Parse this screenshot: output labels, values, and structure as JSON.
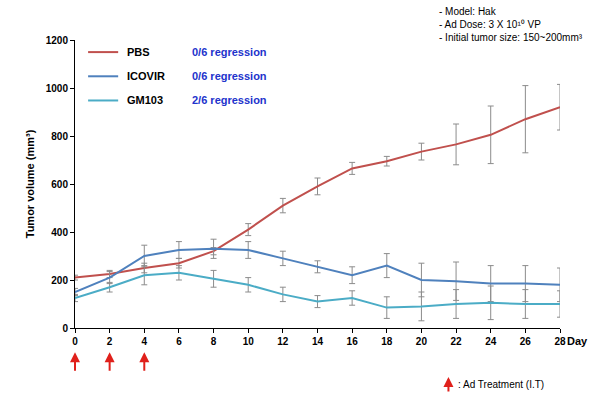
{
  "chart_data": {
    "type": "line",
    "x": [
      0,
      2,
      4,
      6,
      8,
      10,
      12,
      14,
      16,
      18,
      20,
      22,
      24,
      26,
      28
    ],
    "xlim": [
      0,
      28
    ],
    "xticks": [
      0,
      2,
      4,
      6,
      8,
      10,
      12,
      14,
      16,
      18,
      20,
      22,
      24,
      26,
      28
    ],
    "ylim": [
      0,
      1200
    ],
    "yticks": [
      0,
      200,
      400,
      600,
      800,
      1000,
      1200
    ],
    "x_label": "Day",
    "y_label": "Tumor volume (mm³)",
    "grid": false,
    "legend": "upper left",
    "marker": "none",
    "series": [
      {
        "name": "PBS",
        "color": "#c0504d",
        "regression": "0/6 regression",
        "values": [
          210,
          225,
          250,
          270,
          320,
          410,
          510,
          590,
          665,
          695,
          735,
          765,
          805,
          870,
          920
        ],
        "error": [
          10,
          15,
          20,
          20,
          15,
          25,
          30,
          35,
          25,
          20,
          35,
          85,
          120,
          140,
          95
        ]
      },
      {
        "name": "ICOVIR",
        "color": "#4f81bd",
        "regression": "0/6 regression",
        "values": [
          150,
          210,
          300,
          325,
          330,
          325,
          290,
          255,
          220,
          260,
          200,
          195,
          185,
          185,
          180
        ],
        "error": [
          15,
          25,
          45,
          35,
          40,
          35,
          30,
          25,
          35,
          50,
          70,
          80,
          75,
          75,
          70
        ]
      },
      {
        "name": "GM103",
        "color": "#4bacc6",
        "regression": "2/6 regression",
        "values": [
          125,
          170,
          220,
          230,
          205,
          180,
          140,
          110,
          125,
          85,
          90,
          100,
          105,
          100,
          100
        ],
        "error": [
          15,
          20,
          40,
          30,
          35,
          30,
          30,
          25,
          30,
          45,
          60,
          60,
          70,
          60,
          55
        ]
      }
    ],
    "annotations": [
      "- Model: Hak",
      "- Ad Dose: 3 X 10¹⁰ VP",
      "- Initial tumor size: 150~200mm³"
    ],
    "treatment_days": [
      0,
      2,
      4
    ],
    "treatment_label": ": Ad Treatment (I.T)"
  }
}
